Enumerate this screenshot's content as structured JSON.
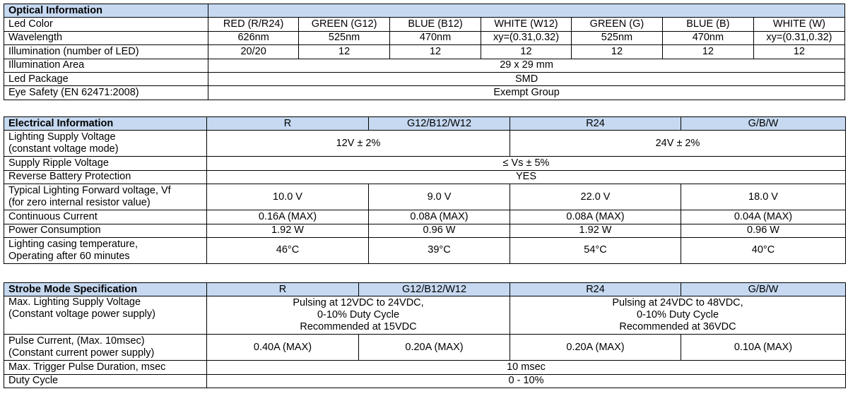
{
  "optical": {
    "title": "Optical Information",
    "rows": {
      "led_color": {
        "label": "Led Color",
        "values": [
          "RED (R/R24)",
          "GREEN (G12)",
          "BLUE (B12)",
          "WHITE (W12)",
          "GREEN (G)",
          "BLUE (B)",
          "WHITE (W)"
        ]
      },
      "wavelength": {
        "label": "Wavelength",
        "values": [
          "626nm",
          "525nm",
          "470nm",
          "xy=(0.31,0.32)",
          "525nm",
          "470nm",
          "xy=(0.31,0.32)"
        ]
      },
      "illumination": {
        "label": "Illumination (number of LED)",
        "values": [
          "20/20",
          "12",
          "12",
          "12",
          "12",
          "12",
          "12"
        ]
      },
      "area": {
        "label": "Illumination Area",
        "value": "29 x 29 mm"
      },
      "package": {
        "label": "Led Package",
        "value": "SMD"
      },
      "eye_safety": {
        "label": "Eye Safety (EN 62471:2008)",
        "value": "Exempt Group"
      }
    }
  },
  "electrical": {
    "title": "Electrical Information",
    "columns": [
      "R",
      "G12/B12/W12",
      "R24",
      "G/B/W"
    ],
    "rows": {
      "supply_voltage": {
        "label_line1": "Lighting Supply Voltage",
        "label_line2": "(constant voltage mode)",
        "values": [
          "12V ± 2%",
          "24V ± 2%"
        ]
      },
      "ripple": {
        "label": "Supply Ripple Voltage",
        "value": "≤ Vs ± 5%"
      },
      "reverse": {
        "label": "Reverse Battery Protection",
        "value": "YES"
      },
      "forward_voltage": {
        "label_line1": "Typical Lighting Forward voltage, Vf",
        "label_line2": "(for zero internal resistor value)",
        "values": [
          "10.0 V",
          "9.0 V",
          "22.0 V",
          "18.0 V"
        ]
      },
      "current": {
        "label": "Continuous Current",
        "values": [
          "0.16A (MAX)",
          "0.08A (MAX)",
          "0.08A (MAX)",
          "0.04A (MAX)"
        ]
      },
      "power": {
        "label": "Power Consumption",
        "values": [
          "1.92 W",
          "0.96 W",
          "1.92 W",
          "0.96 W"
        ]
      },
      "temperature": {
        "label_line1": "Lighting casing temperature,",
        "label_line2": "Operating after 60 minutes",
        "values": [
          "46°C",
          "39°C",
          "54°C",
          "40°C"
        ]
      }
    }
  },
  "strobe": {
    "title": "Strobe Mode Specification",
    "columns": [
      "R",
      "G12/B12/W12",
      "R24",
      "G/B/W"
    ],
    "rows": {
      "max_voltage": {
        "label_line1": "Max. Lighting Supply Voltage",
        "label_line2": "(Constant voltage power supply)",
        "left": [
          "Pulsing at 12VDC to 24VDC,",
          "0-10% Duty Cycle",
          "Recommended at 15VDC"
        ],
        "right": [
          "Pulsing at 24VDC to 48VDC,",
          "0-10% Duty Cycle",
          "Recommended at 36VDC"
        ]
      },
      "pulse_current": {
        "label_line1": "Pulse Current, (Max. 10msec)",
        "label_line2": "(Constant current power supply)",
        "values": [
          "0.40A (MAX)",
          "0.20A (MAX)",
          "0.20A (MAX)",
          "0.10A (MAX)"
        ]
      },
      "trigger": {
        "label": "Max. Trigger Pulse Duration, msec",
        "value": "10 msec"
      },
      "duty": {
        "label": "Duty Cycle",
        "value": "0 - 10%"
      }
    }
  }
}
